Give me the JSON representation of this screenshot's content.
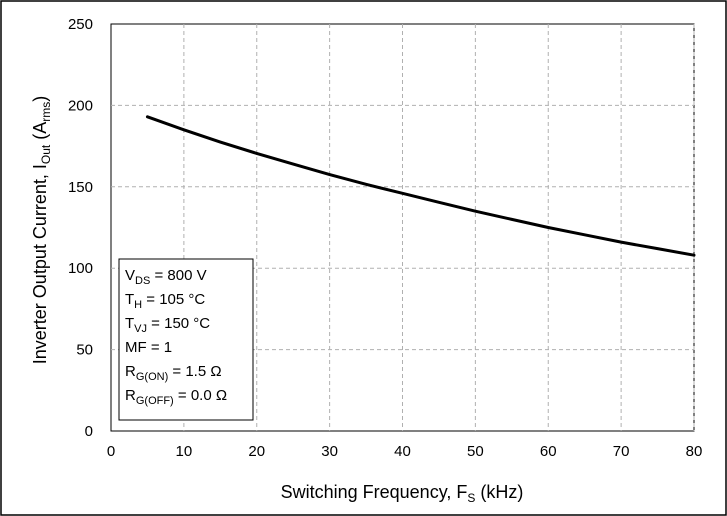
{
  "chart_data": {
    "type": "line",
    "title": "",
    "xlabel": {
      "main": "Switching Frequency, F",
      "sub": "S",
      "tail": " (kHz)"
    },
    "ylabel": {
      "main": "Inverter Output Current, I",
      "sub": "Out",
      "mid": " (A",
      "sub2": "rms",
      "tail": ")"
    },
    "xlim": [
      0,
      80
    ],
    "ylim": [
      0,
      250
    ],
    "xticks": [
      0,
      10,
      20,
      30,
      40,
      50,
      60,
      70,
      80
    ],
    "yticks": [
      0,
      50,
      100,
      150,
      200,
      250
    ],
    "grid": true,
    "series": [
      {
        "x": [
          5,
          10,
          15,
          20,
          25,
          30,
          35,
          40,
          45,
          50,
          55,
          60,
          65,
          70,
          75,
          80
        ],
        "y": [
          193,
          185,
          177.5,
          170.5,
          164,
          157.5,
          151.5,
          146,
          140.5,
          135,
          130,
          125,
          120.5,
          116,
          112,
          108
        ],
        "color": "#000000"
      }
    ],
    "annotation": [
      {
        "main": "V",
        "sub": "DS",
        "rest": " = 800 V"
      },
      {
        "main": "T",
        "sub": "H",
        "rest": " = 105 °C"
      },
      {
        "main": "T",
        "sub": "VJ",
        "rest": " = 150 °C"
      },
      {
        "main": "MF = 1",
        "sub": "",
        "rest": ""
      },
      {
        "main": "R",
        "sub": "G(ON)",
        "rest": " = 1.5 Ω"
      },
      {
        "main": "R",
        "sub": "G(OFF)",
        "rest": " = 0.0 Ω"
      }
    ]
  }
}
